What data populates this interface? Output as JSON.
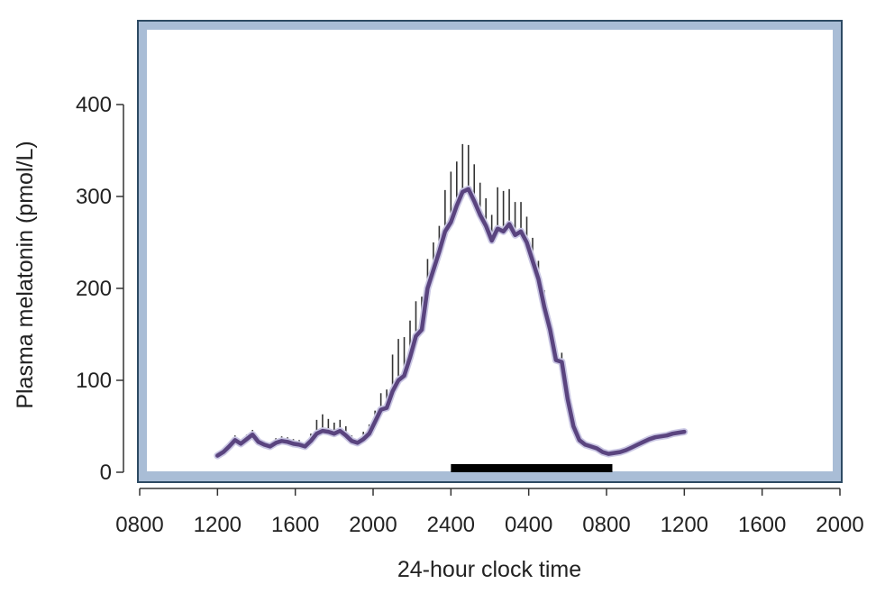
{
  "chart_data": {
    "type": "line",
    "title": "",
    "xlabel": "24-hour clock time",
    "ylabel": "Plasma melatonin (pmol/L)",
    "x_unit": "hours since 0800 on day 1",
    "xlim": [
      0,
      36
    ],
    "ylim": [
      0,
      400
    ],
    "x_ticks": [
      0,
      4,
      8,
      12,
      16,
      20,
      24,
      28,
      32,
      36
    ],
    "x_tick_labels": [
      "0800",
      "1200",
      "1600",
      "2000",
      "2400",
      "0400",
      "0800",
      "1200",
      "1600",
      "2000"
    ],
    "y_ticks": [
      0,
      100,
      200,
      300,
      400
    ],
    "y_tick_labels": [
      "0",
      "100",
      "200",
      "300",
      "400"
    ],
    "grid": false,
    "legend": "none",
    "colors": {
      "line": "#5a447f",
      "line_halo": "#c9c6e3",
      "error_bar": "#333333",
      "frame_outer": "#2d4a63",
      "frame_inner": "#a9bdd6",
      "bar": "#000000"
    },
    "series": [
      {
        "x": [
          4.0,
          4.3,
          4.6,
          4.9,
          5.2,
          5.5,
          5.8,
          6.1,
          6.4,
          6.7,
          7.0,
          7.3,
          7.6,
          7.9,
          8.2,
          8.5,
          8.8,
          9.1,
          9.4,
          9.7,
          10.0,
          10.3,
          10.6,
          10.9,
          11.2,
          11.5,
          11.8,
          12.1,
          12.4,
          12.7,
          13.0,
          13.3,
          13.6,
          13.9,
          14.2,
          14.5,
          14.8,
          15.1,
          15.4,
          15.7,
          16.0,
          16.3,
          16.6,
          16.9,
          17.2,
          17.5,
          17.8,
          18.1,
          18.4,
          18.7,
          19.0,
          19.3,
          19.6,
          19.9,
          20.2,
          20.5,
          20.8,
          21.1,
          21.4,
          21.7,
          22.0,
          22.3,
          22.6,
          22.9,
          23.2,
          23.5,
          23.8,
          24.1,
          24.4,
          24.7,
          25.0,
          25.3,
          25.6,
          25.9,
          26.2,
          26.5,
          26.8,
          27.1,
          27.4,
          27.7,
          28.0
        ],
        "y": [
          18,
          22,
          28,
          35,
          31,
          36,
          41,
          33,
          30,
          28,
          32,
          34,
          33,
          31,
          30,
          28,
          34,
          42,
          45,
          44,
          42,
          45,
          40,
          34,
          32,
          36,
          42,
          55,
          68,
          70,
          88,
          100,
          105,
          125,
          148,
          155,
          200,
          220,
          240,
          262,
          272,
          290,
          305,
          308,
          295,
          280,
          268,
          252,
          265,
          262,
          270,
          258,
          262,
          250,
          230,
          210,
          180,
          155,
          122,
          120,
          80,
          50,
          35,
          30,
          28,
          26,
          22,
          20,
          21,
          22,
          24,
          27,
          30,
          33,
          36,
          38,
          39,
          40,
          42,
          43,
          44
        ],
        "error": [
          2,
          3,
          4,
          5,
          4,
          5,
          5,
          4,
          4,
          4,
          5,
          5,
          5,
          5,
          5,
          4,
          8,
          15,
          18,
          14,
          12,
          12,
          10,
          6,
          4,
          8,
          10,
          12,
          18,
          20,
          40,
          45,
          42,
          40,
          38,
          36,
          32,
          30,
          28,
          45,
          55,
          48,
          52,
          48,
          40,
          35,
          30,
          28,
          45,
          44,
          38,
          36,
          32,
          28,
          25,
          20,
          18,
          12,
          10,
          10,
          8,
          5,
          3,
          3,
          3,
          3,
          3,
          3,
          3,
          3,
          3,
          3,
          3,
          3,
          3,
          3,
          3,
          3,
          3,
          3,
          3
        ]
      }
    ],
    "bar": {
      "start": 16,
      "end": 24.3
    }
  }
}
